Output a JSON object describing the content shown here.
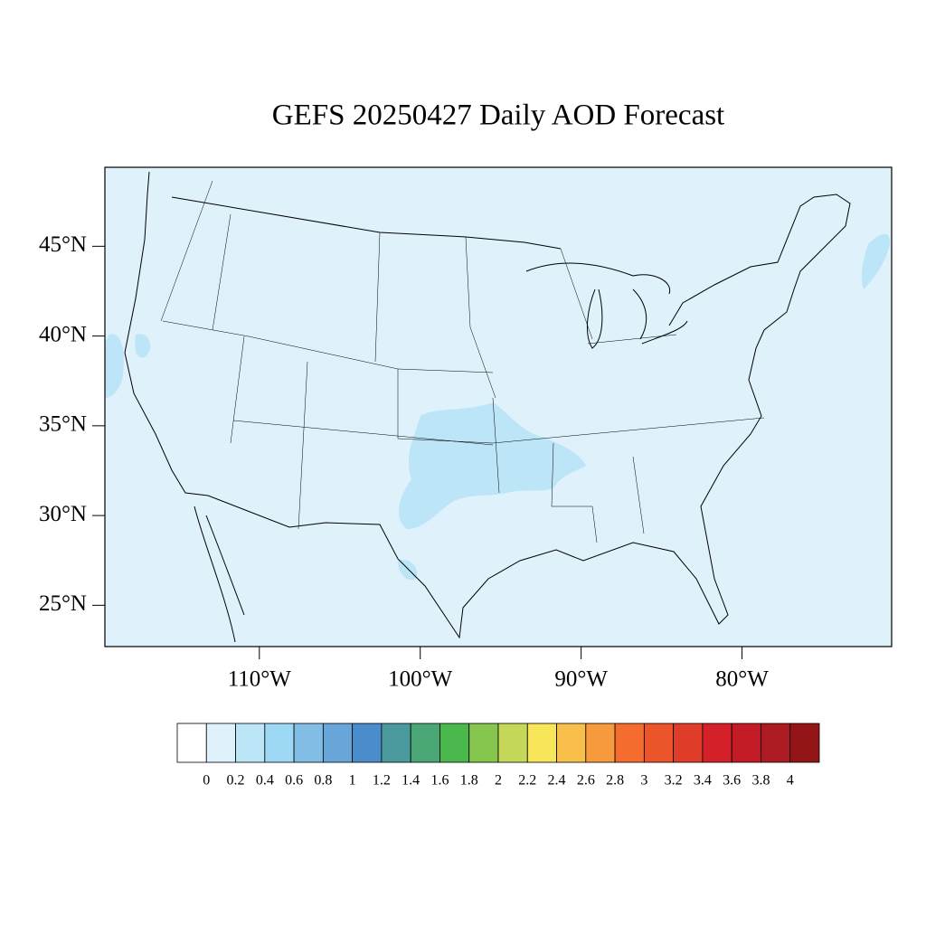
{
  "chart_data": {
    "type": "map",
    "title": "GEFS 20250427 Daily AOD Forecast",
    "xlim": [
      -119.6,
      -70.7
    ],
    "ylim": [
      22.7,
      49.4
    ],
    "xticks": [
      {
        "value": -110,
        "label": "110°W"
      },
      {
        "value": -100,
        "label": "100°W"
      },
      {
        "value": -90,
        "label": "90°W"
      },
      {
        "value": -80,
        "label": "80°W"
      }
    ],
    "yticks": [
      {
        "value": 45,
        "label": "45°N"
      },
      {
        "value": 40,
        "label": "40°N"
      },
      {
        "value": 35,
        "label": "35°N"
      },
      {
        "value": 30,
        "label": "30°N"
      },
      {
        "value": 25,
        "label": "25°N"
      }
    ],
    "colorbar": {
      "levels": [
        0,
        0.2,
        0.4,
        0.6,
        0.8,
        1,
        1.2,
        1.4,
        1.6,
        1.8,
        2,
        2.2,
        2.4,
        2.6,
        2.8,
        3,
        3.2,
        3.4,
        3.6,
        3.8,
        4
      ],
      "colors": [
        "#ffffff",
        "#dff1fb",
        "#bde5f8",
        "#9dd8f4",
        "#82bde6",
        "#68a6da",
        "#4a8dca",
        "#4a9a9e",
        "#4aa675",
        "#4ab84c",
        "#86c54e",
        "#c5d85a",
        "#f7e65a",
        "#f8c04a",
        "#f79a3d",
        "#f46d2e",
        "#ec5529",
        "#e03c2a",
        "#d42029",
        "#c21b26",
        "#ac1a22",
        "#931518"
      ]
    }
  }
}
